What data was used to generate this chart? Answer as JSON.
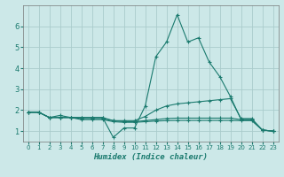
{
  "xlabel": "Humidex (Indice chaleur)",
  "background_color": "#cce8e8",
  "line_color": "#1a7a6e",
  "grid_color": "#aacccc",
  "xlim": [
    -0.5,
    23.5
  ],
  "ylim": [
    0.5,
    7.0
  ],
  "yticks": [
    1,
    2,
    3,
    4,
    5,
    6
  ],
  "xticks": [
    0,
    1,
    2,
    3,
    4,
    5,
    6,
    7,
    8,
    9,
    10,
    11,
    12,
    13,
    14,
    15,
    16,
    17,
    18,
    19,
    20,
    21,
    22,
    23
  ],
  "series": [
    {
      "x": [
        0,
        1,
        2,
        3,
        4,
        5,
        6,
        7,
        8,
        9,
        10,
        11,
        12,
        13,
        14,
        15,
        16,
        17,
        18,
        19,
        20,
        21,
        22,
        23
      ],
      "y": [
        1.9,
        1.9,
        1.65,
        1.75,
        1.65,
        1.65,
        1.65,
        1.65,
        0.7,
        1.15,
        1.15,
        2.2,
        4.55,
        5.25,
        6.55,
        5.25,
        5.45,
        4.3,
        3.6,
        2.65,
        1.55,
        1.55,
        1.05,
        1.0
      ]
    },
    {
      "x": [
        0,
        1,
        2,
        3,
        4,
        5,
        6,
        7,
        8,
        9,
        10,
        11,
        12,
        13,
        14,
        15,
        16,
        17,
        18,
        19,
        20,
        21,
        22,
        23
      ],
      "y": [
        1.9,
        1.9,
        1.65,
        1.65,
        1.65,
        1.65,
        1.65,
        1.65,
        1.5,
        1.5,
        1.5,
        1.7,
        2.0,
        2.2,
        2.3,
        2.35,
        2.4,
        2.45,
        2.5,
        2.55,
        1.6,
        1.6,
        1.05,
        1.0
      ]
    },
    {
      "x": [
        0,
        1,
        2,
        3,
        4,
        5,
        6,
        7,
        8,
        9,
        10,
        11,
        12,
        13,
        14,
        15,
        16,
        17,
        18,
        19,
        20,
        21,
        22,
        23
      ],
      "y": [
        1.9,
        1.9,
        1.65,
        1.65,
        1.65,
        1.6,
        1.6,
        1.6,
        1.5,
        1.45,
        1.45,
        1.5,
        1.55,
        1.6,
        1.62,
        1.62,
        1.62,
        1.62,
        1.62,
        1.62,
        1.55,
        1.55,
        1.05,
        1.0
      ]
    },
    {
      "x": [
        0,
        1,
        2,
        3,
        4,
        5,
        6,
        7,
        8,
        9,
        10,
        11,
        12,
        13,
        14,
        15,
        16,
        17,
        18,
        19,
        20,
        21,
        22,
        23
      ],
      "y": [
        1.9,
        1.9,
        1.65,
        1.65,
        1.65,
        1.55,
        1.55,
        1.55,
        1.45,
        1.42,
        1.42,
        1.45,
        1.48,
        1.5,
        1.51,
        1.51,
        1.51,
        1.51,
        1.51,
        1.51,
        1.5,
        1.5,
        1.05,
        1.0
      ]
    }
  ]
}
